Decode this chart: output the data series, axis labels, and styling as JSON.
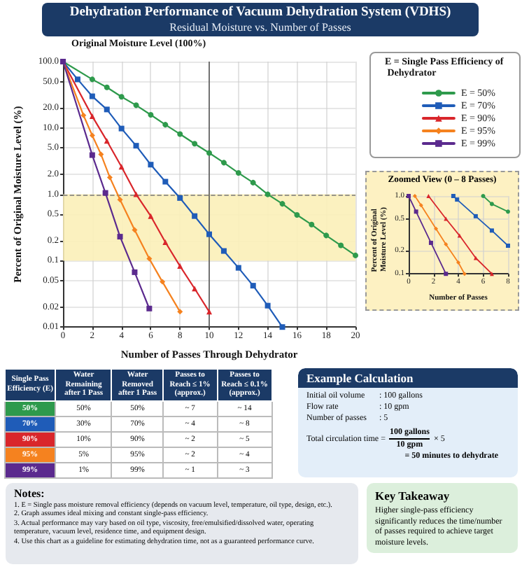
{
  "chart_data": [
    {
      "type": "line",
      "title": "Dehydration Performance of Vacuum Dehydration System (VDHS)",
      "subtitle": "Residual Moisture vs. Number of Passes",
      "xlabel": "Number of Passes Through Dehydrator",
      "ylabel": "Percent of Original Moisture Level (%)",
      "legend_title": "E = Single Pass Efficiency of Dehydrator",
      "legend": "top right",
      "grid": true,
      "log": "y",
      "xlim": [
        0,
        20
      ],
      "xticks": [
        0,
        2,
        4,
        6,
        8,
        10,
        12,
        14,
        16,
        18,
        20
      ],
      "ylim": [
        0.01,
        100
      ],
      "yticks": [
        {
          "value": 100,
          "label": "100.0"
        },
        {
          "value": 50,
          "label": "50.0"
        },
        {
          "value": 20,
          "label": "20.0"
        },
        {
          "value": 10,
          "label": "10.0"
        },
        {
          "value": 5,
          "label": "5.0"
        },
        {
          "value": 2,
          "label": "2.0"
        },
        {
          "value": 1,
          "label": "1.0"
        },
        0.5,
        0.2,
        0.1,
        0.05,
        0.02,
        0.01
      ],
      "series": [
        {
          "name": "E = 50%",
          "color": "#2e9a4c",
          "marker": "circle",
          "x": [
            0,
            2,
            3,
            4,
            5,
            6,
            7,
            8,
            9,
            10,
            11,
            12,
            13,
            14,
            15,
            16,
            17,
            18,
            19,
            20
          ],
          "values": [
            100,
            54,
            41,
            29.5,
            22,
            15.8,
            11.2,
            8.1,
            5.8,
            4.2,
            3.0,
            2.1,
            1.5,
            1.0,
            0.72,
            0.49,
            0.35,
            0.24,
            0.17,
            0.12
          ]
        },
        {
          "name": "E = 70%",
          "color": "#1f5cb8",
          "marker": "square",
          "x": [
            0,
            1,
            2,
            3,
            4,
            5,
            6,
            7,
            8,
            9,
            10,
            11,
            12,
            13,
            14,
            15
          ],
          "values": [
            100,
            54,
            30,
            19,
            9.8,
            5.4,
            2.8,
            1.55,
            0.88,
            0.47,
            0.25,
            0.14,
            0.078,
            0.042,
            0.021,
            0.01
          ]
        },
        {
          "name": "E = 90%",
          "color": "#d9262b",
          "marker": "triangle",
          "x": [
            0,
            2,
            3,
            4,
            5,
            6,
            7,
            8,
            9,
            10
          ],
          "values": [
            100,
            15,
            6.4,
            2.6,
            1.0,
            0.47,
            0.19,
            0.083,
            0.038,
            0.017
          ]
        },
        {
          "name": "E = 95%",
          "color": "#f5821f",
          "marker": "diamond",
          "x": [
            0,
            1.4,
            2,
            2.6,
            3.2,
            3.9,
            4.9,
            5.9,
            6.8,
            8
          ],
          "values": [
            100,
            15.5,
            7.7,
            4.0,
            1.8,
            0.83,
            0.29,
            0.107,
            0.048,
            0.017
          ]
        },
        {
          "name": "E = 99%",
          "color": "#5b2a8e",
          "marker": "square",
          "x": [
            0,
            2,
            2.9,
            3.9,
            4.9,
            5.9
          ],
          "values": [
            100,
            3.9,
            1.05,
            0.23,
            0.067,
            0.019
          ]
        }
      ],
      "bands": [
        {
          "axis": "y",
          "from": 0.1,
          "to": 1,
          "color": "#fbefb8"
        }
      ],
      "ref_lines": [
        {
          "axis": "y",
          "value": 1,
          "color": "#777777",
          "line_style": "dashed"
        },
        {
          "axis": "x",
          "value": 10,
          "color": "#555555",
          "line_style": "solid"
        }
      ],
      "annotations": [
        {
          "text": "Original Moisture Level (100%)",
          "x": 0,
          "y": 100
        }
      ]
    },
    {
      "type": "line",
      "title": "Zoomed View (0 – 8 Passes)",
      "xlabel": "Number of Passes",
      "ylabel": "Percent of Original Moisture Level (%)",
      "grid": true,
      "log": "y",
      "xlim": [
        0,
        8
      ],
      "xticks": [
        0,
        2,
        4,
        6,
        8
      ],
      "ylim": [
        0.1,
        1
      ],
      "yticks": [
        {
          "value": 1,
          "label": "1.0"
        },
        0.5,
        0.2,
        0.1
      ],
      "series": [
        {
          "color": "#5b2a8e",
          "marker": "square",
          "x": [
            0,
            0.6,
            1.8,
            3
          ],
          "values": [
            1.0,
            0.63,
            0.25,
            0.1
          ]
        },
        {
          "color": "#f5821f",
          "marker": "diamond",
          "x": [
            0.5,
            1.0,
            2.2,
            3.0,
            4.0,
            4.5
          ],
          "values": [
            1.0,
            0.76,
            0.38,
            0.24,
            0.14,
            0.1
          ]
        },
        {
          "color": "#d9262b",
          "marker": "triangle",
          "x": [
            1.6,
            3.0,
            4.1,
            5.4,
            6.7
          ],
          "values": [
            1.0,
            0.51,
            0.31,
            0.16,
            0.1
          ]
        },
        {
          "color": "#1f5cb8",
          "marker": "square",
          "x": [
            3.6,
            3.9,
            5.4,
            6.7,
            8
          ],
          "values": [
            1.0,
            0.9,
            0.55,
            0.36,
            0.23
          ]
        },
        {
          "color": "#2e9a4c",
          "marker": "circle",
          "x": [
            6.0,
            6.7,
            8
          ],
          "values": [
            1.0,
            0.79,
            0.63
          ]
        }
      ]
    },
    {
      "type": "other",
      "categories": [
        "50%",
        "70%",
        "90%",
        "95%",
        "99%"
      ],
      "colors": [
        "#2e9a4c",
        "#1f5cb8",
        "#d9262b",
        "#f5821f",
        "#5b2a8e"
      ],
      "annotations": [
        "Single Pass Efficiency (E)",
        "Water Remaining after 1 Pass",
        "Water Removed after 1 Pass",
        "Passes to Reach ≤ 1% (approx.)",
        "Passes to Reach ≤ 0.1% (approx.)",
        "50%",
        "50%",
        "~ 7",
        "~ 14",
        "30%",
        "70%",
        "~ 4",
        "~ 8",
        "10%",
        "90%",
        "~ 2",
        "~ 5",
        "5%",
        "95%",
        "~ 2",
        "~ 4",
        "1%",
        "99%",
        "~ 1",
        "~ 3"
      ]
    },
    {
      "type": "other",
      "title": "Example Calculation",
      "annotations": [
        "Initial oil volume",
        ": 100 gallons",
        "Flow rate",
        ": 10 gpm",
        "Number of passes",
        ": 5",
        "Total circulation time =",
        "100 gallons",
        "10 gpm",
        "× 5",
        "= 50 minutes to dehydrate"
      ]
    },
    {
      "type": "other",
      "title": "Notes:",
      "annotations": [
        "1. E = Single pass moisture removal efficiency (depends on vacuum level, temperature, oil type, design, etc.).",
        "2. Graph assumes ideal mixing and constant single-pass efficiency.",
        "3. Actual performance may vary based on oil type, viscosity, free/emulsified/dissolved water, operating temperature, vacuum level, residence time, and equipment design.",
        "4. Use this chart as a guideline for estimating dehydration time, not as a guaranteed performance curve."
      ]
    },
    {
      "type": "other",
      "title": "Key Takeaway",
      "annotations": [
        "Higher single-pass efficiency significantly reduces the time/number of passes required to achieve target moisture levels."
      ]
    }
  ]
}
